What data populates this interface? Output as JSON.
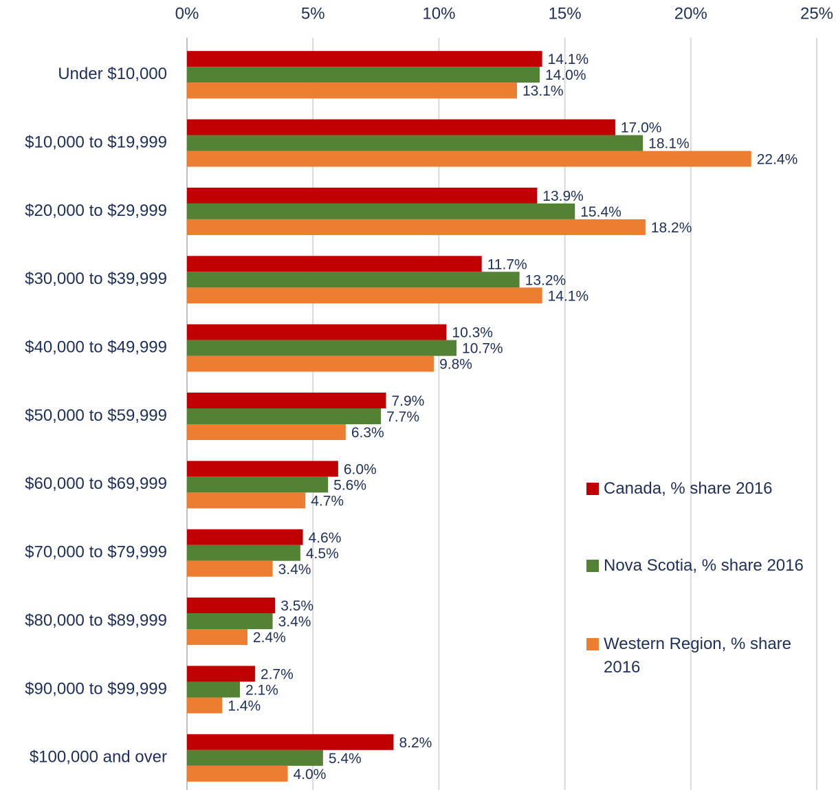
{
  "chart_data": {
    "type": "bar",
    "orientation": "horizontal",
    "categories": [
      "Under $10,000",
      "$10,000 to $19,999",
      "$20,000 to $29,999",
      "$30,000 to $39,999",
      "$40,000 to $49,999",
      "$50,000 to $59,999",
      "$60,000 to $69,999",
      "$70,000 to $79,999",
      "$80,000 to $89,999",
      "$90,000 to $99,999",
      "$100,000 and over"
    ],
    "series": [
      {
        "name": "Canada, % share 2016",
        "color": "#c00000",
        "values": [
          14.1,
          17.0,
          13.9,
          11.7,
          10.3,
          7.9,
          6.0,
          4.6,
          3.5,
          2.7,
          8.2
        ],
        "value_labels": [
          "14.1%",
          "17.0%",
          "13.9%",
          "11.7%",
          "10.3%",
          "7.9%",
          "6.0%",
          "4.6%",
          "3.5%",
          "2.7%",
          "8.2%"
        ]
      },
      {
        "name": "Nova Scotia, % share 2016",
        "color": "#548235",
        "values": [
          14.0,
          18.1,
          15.4,
          13.2,
          10.7,
          7.7,
          5.6,
          4.5,
          3.4,
          2.1,
          5.4
        ],
        "value_labels": [
          "14.0%",
          "18.1%",
          "15.4%",
          "13.2%",
          "10.7%",
          "7.7%",
          "5.6%",
          "4.5%",
          "3.4%",
          "2.1%",
          "5.4%"
        ]
      },
      {
        "name": "Western Region, % share 2016",
        "color": "#ed7d31",
        "values": [
          13.1,
          22.4,
          18.2,
          14.1,
          9.8,
          6.3,
          4.7,
          3.4,
          2.4,
          1.4,
          4.0
        ],
        "value_labels": [
          "13.1%",
          "22.4%",
          "18.2%",
          "14.1%",
          "9.8%",
          "6.3%",
          "4.7%",
          "3.4%",
          "2.4%",
          "1.4%",
          "4.0%"
        ]
      }
    ],
    "xlim": [
      0,
      25
    ],
    "xticks": [
      {
        "value": 0,
        "label": "0%"
      },
      {
        "value": 5,
        "label": "5%"
      },
      {
        "value": 10,
        "label": "10%"
      },
      {
        "value": 15,
        "label": "15%"
      },
      {
        "value": 20,
        "label": "20%"
      },
      {
        "value": 25,
        "label": "25%"
      }
    ],
    "grid": true,
    "legend": "right"
  }
}
